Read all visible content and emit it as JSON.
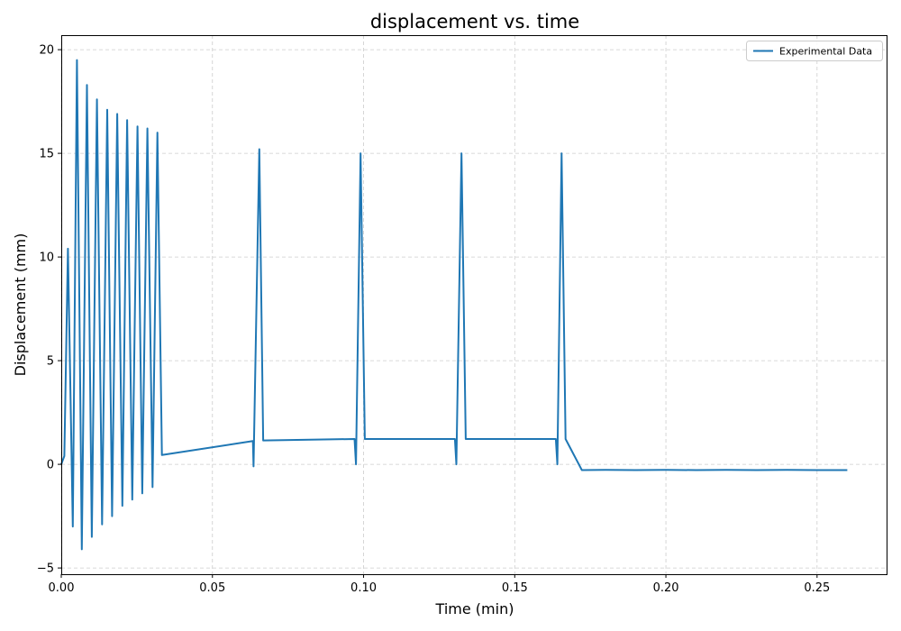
{
  "chart_data": {
    "type": "line",
    "title": "displacement vs. time",
    "xlabel": "Time (min)",
    "ylabel": "Displacement (mm)",
    "xlim": [
      0.0,
      0.273
    ],
    "ylim": [
      -5.3,
      20.7
    ],
    "xticks": [
      0.0,
      0.05,
      0.1,
      0.15,
      0.2,
      0.25
    ],
    "xtick_labels": [
      "0.00",
      "0.05",
      "0.10",
      "0.15",
      "0.20",
      "0.25"
    ],
    "yticks": [
      -5,
      0,
      5,
      10,
      15,
      20
    ],
    "ytick_labels": [
      "−5",
      "0",
      "5",
      "10",
      "15",
      "20"
    ],
    "grid": true,
    "legend_position": "top-right",
    "series": [
      {
        "name": "Experimental Data",
        "color": "#1f77b4",
        "x": [
          0.0,
          0.001,
          0.0022,
          0.0038,
          0.0052,
          0.0068,
          0.0085,
          0.0101,
          0.0118,
          0.0135,
          0.0152,
          0.0168,
          0.0185,
          0.0202,
          0.0218,
          0.0235,
          0.0252,
          0.0268,
          0.0285,
          0.0302,
          0.0318,
          0.0333,
          0.0634,
          0.0636,
          0.0655,
          0.0668,
          0.097,
          0.0975,
          0.099,
          0.1004,
          0.1302,
          0.1307,
          0.1324,
          0.1338,
          0.1636,
          0.1641,
          0.1655,
          0.1668,
          0.1722,
          0.18,
          0.19,
          0.2,
          0.21,
          0.22,
          0.23,
          0.24,
          0.25,
          0.26
        ],
        "y": [
          0.0,
          0.4,
          10.4,
          -3.0,
          19.5,
          -4.1,
          18.3,
          -3.5,
          17.6,
          -2.9,
          17.1,
          -2.5,
          16.9,
          -2.0,
          16.6,
          -1.7,
          16.3,
          -1.4,
          16.2,
          -1.1,
          16.0,
          0.45,
          1.12,
          -0.1,
          15.2,
          1.15,
          1.22,
          0.0,
          15.0,
          1.22,
          1.22,
          0.0,
          15.0,
          1.22,
          1.22,
          0.0,
          15.0,
          1.22,
          -0.28,
          -0.27,
          -0.28,
          -0.27,
          -0.28,
          -0.27,
          -0.28,
          -0.27,
          -0.28,
          -0.28
        ]
      }
    ]
  }
}
